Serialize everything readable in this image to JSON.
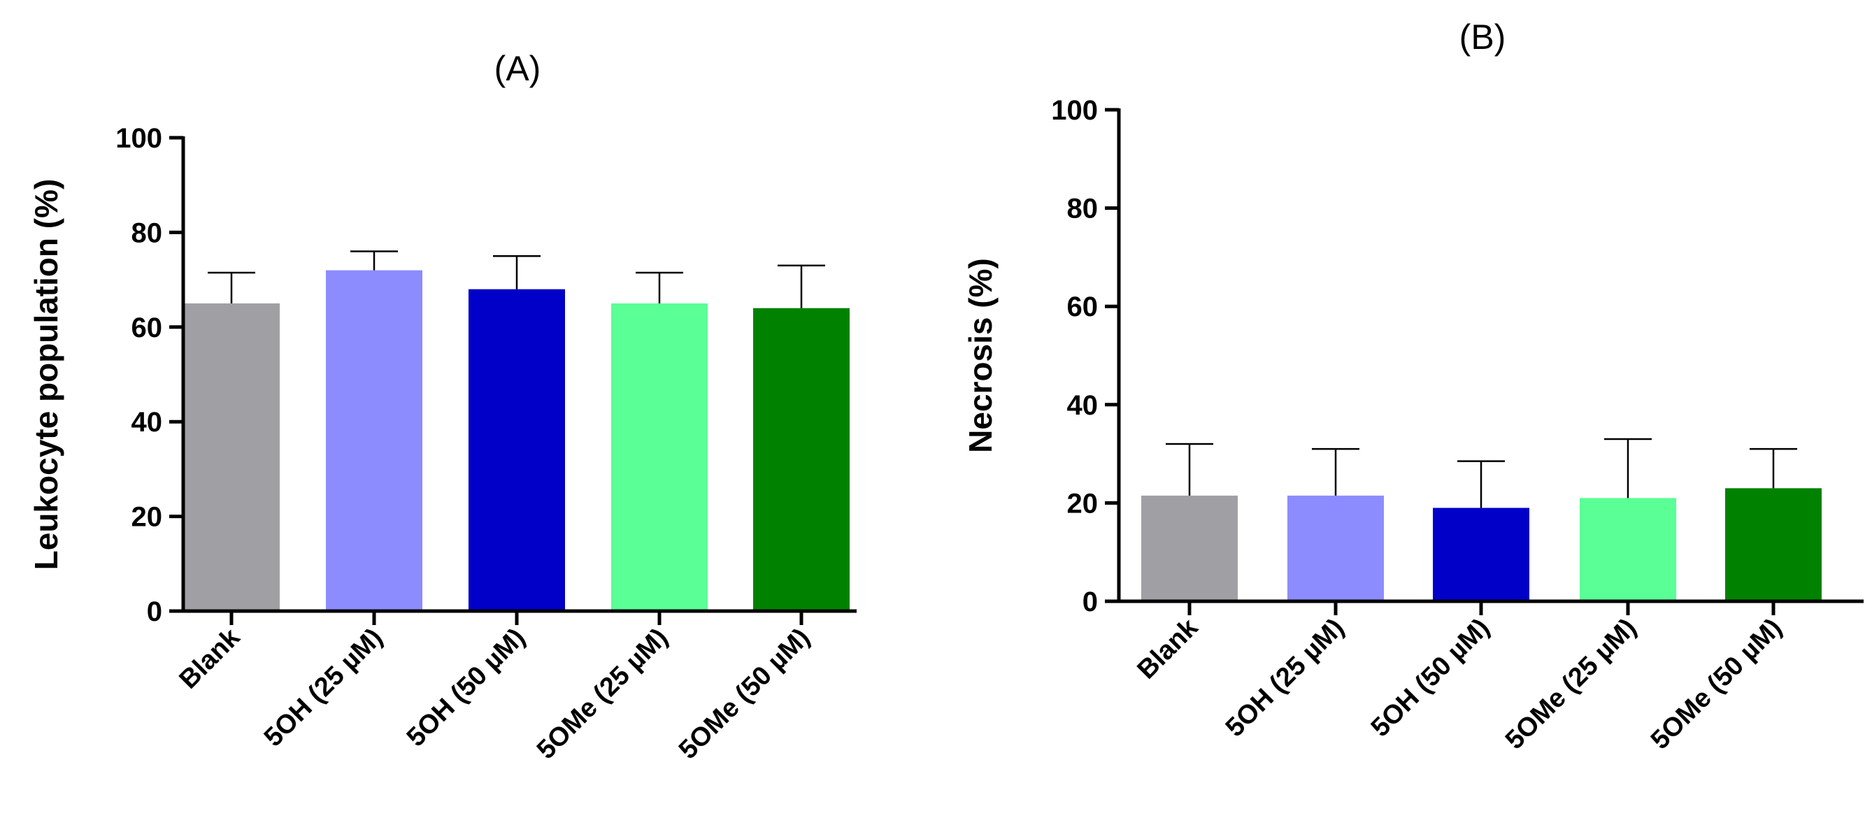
{
  "chart_data": [
    {
      "type": "bar",
      "title": "(A)",
      "xlabel": "",
      "ylabel": "Leukocyte population  (%)",
      "ylim": [
        0,
        100
      ],
      "yticks": [
        0,
        20,
        40,
        60,
        80,
        100
      ],
      "categories": [
        "Blank",
        "5OH (25 µM)",
        "5OH (50 µM)",
        "5OMe (25 µM)",
        "5OMe (50 µM)"
      ],
      "values": [
        65,
        72,
        68,
        65,
        64
      ],
      "errors": [
        6.5,
        4,
        7,
        6.5,
        9
      ],
      "colors": [
        "#A0A0A4",
        "#8C8CFF",
        "#0000C8",
        "#5AFF96",
        "#008200"
      ]
    },
    {
      "type": "bar",
      "title": "(B)",
      "xlabel": "",
      "ylabel": "Necrosis (%)",
      "ylim": [
        0,
        100
      ],
      "yticks": [
        0,
        20,
        40,
        60,
        80,
        100
      ],
      "categories": [
        "Blank",
        "5OH (25 µM)",
        "5OH (50 µM)",
        "5OMe (25 µM)",
        "5OMe (50 µM)"
      ],
      "values": [
        21.5,
        21.5,
        19,
        21,
        23
      ],
      "errors": [
        10.5,
        9.5,
        9.5,
        12,
        8
      ],
      "colors": [
        "#A0A0A4",
        "#8C8CFF",
        "#0000C8",
        "#5AFF96",
        "#008200"
      ]
    }
  ]
}
